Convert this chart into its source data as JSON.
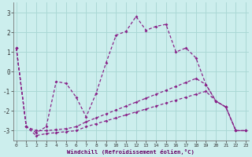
{
  "xlabel": "Windchill (Refroidissement éolien,°C)",
  "background_color": "#cceeed",
  "grid_color": "#aad8d5",
  "line_color": "#882288",
  "x_ticks": [
    0,
    1,
    2,
    3,
    4,
    5,
    6,
    7,
    8,
    9,
    10,
    11,
    12,
    13,
    14,
    15,
    16,
    17,
    18,
    19,
    20,
    21,
    22,
    23
  ],
  "y_ticks": [
    -3,
    -2,
    -1,
    0,
    1,
    2,
    3
  ],
  "xlim": [
    -0.3,
    23.3
  ],
  "ylim": [
    -3.5,
    3.5
  ],
  "series": [
    [
      1.2,
      -2.8,
      -3.1,
      -2.8,
      -0.5,
      -0.6,
      -1.3,
      -2.3,
      -1.1,
      0.45,
      1.85,
      2.05,
      2.8,
      2.1,
      2.3,
      2.4,
      1.0,
      1.2,
      0.7,
      -0.65,
      -1.5,
      -1.8,
      -3.0,
      -3.0
    ],
    [
      1.2,
      -2.8,
      -3.0,
      -3.0,
      -2.95,
      -2.9,
      -2.8,
      -2.55,
      -2.35,
      -2.15,
      -1.95,
      -1.75,
      -1.55,
      -1.35,
      -1.15,
      -0.95,
      -0.75,
      -0.55,
      -0.35,
      -0.65,
      -1.5,
      -1.8,
      -3.0,
      -3.0
    ],
    [
      1.2,
      -2.8,
      -3.25,
      -3.15,
      -3.1,
      -3.05,
      -3.0,
      -2.8,
      -2.65,
      -2.5,
      -2.35,
      -2.2,
      -2.05,
      -1.9,
      -1.75,
      -1.6,
      -1.45,
      -1.3,
      -1.15,
      -1.0,
      -1.5,
      -1.8,
      -3.0,
      -3.0
    ]
  ]
}
